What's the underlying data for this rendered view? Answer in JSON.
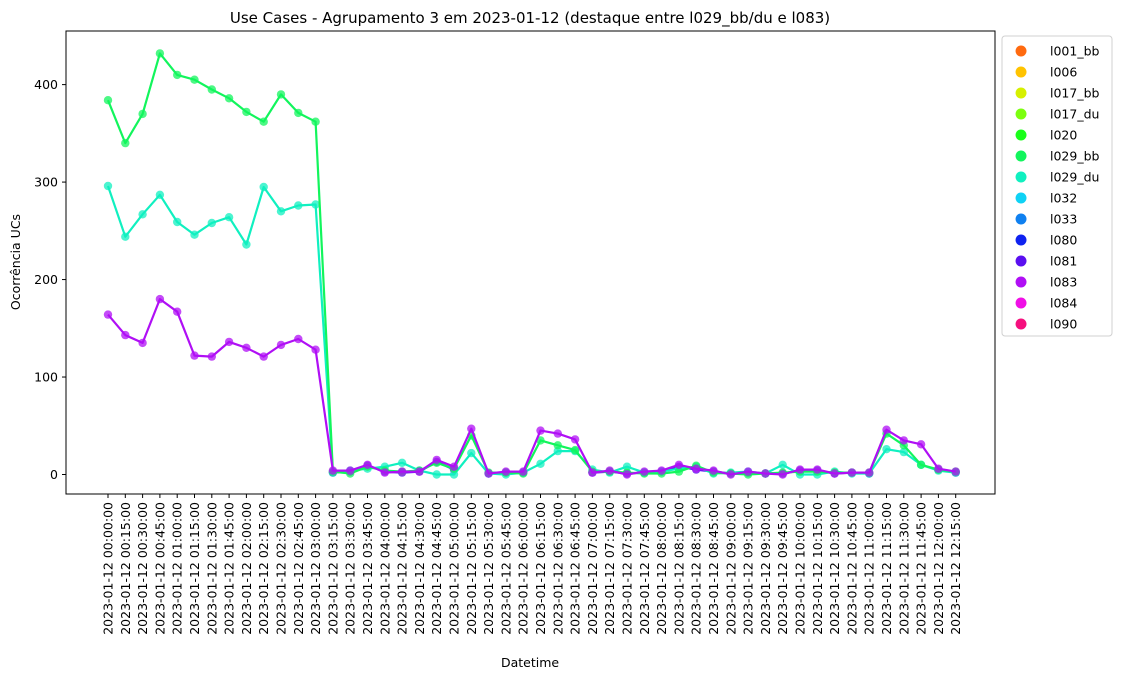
{
  "chart_data": {
    "type": "line",
    "title": "Use Cases - Agrupamento 3 em 2023-01-12 (destaque entre l029_bb/du e l083)",
    "xlabel": "Datetime",
    "ylabel": "Ocorrência UCs",
    "ylim": [
      -20,
      455
    ],
    "yticks": [
      0,
      100,
      200,
      300,
      400
    ],
    "grid": false,
    "legend_position": "outside-right",
    "categories": [
      "2023-01-12 00:00:00",
      "2023-01-12 00:15:00",
      "2023-01-12 00:30:00",
      "2023-01-12 00:45:00",
      "2023-01-12 01:00:00",
      "2023-01-12 01:15:00",
      "2023-01-12 01:30:00",
      "2023-01-12 01:45:00",
      "2023-01-12 02:00:00",
      "2023-01-12 02:15:00",
      "2023-01-12 02:30:00",
      "2023-01-12 02:45:00",
      "2023-01-12 03:00:00",
      "2023-01-12 03:15:00",
      "2023-01-12 03:30:00",
      "2023-01-12 03:45:00",
      "2023-01-12 04:00:00",
      "2023-01-12 04:15:00",
      "2023-01-12 04:30:00",
      "2023-01-12 04:45:00",
      "2023-01-12 05:00:00",
      "2023-01-12 05:15:00",
      "2023-01-12 05:30:00",
      "2023-01-12 05:45:00",
      "2023-01-12 06:00:00",
      "2023-01-12 06:15:00",
      "2023-01-12 06:30:00",
      "2023-01-12 06:45:00",
      "2023-01-12 07:00:00",
      "2023-01-12 07:15:00",
      "2023-01-12 07:30:00",
      "2023-01-12 07:45:00",
      "2023-01-12 08:00:00",
      "2023-01-12 08:15:00",
      "2023-01-12 08:30:00",
      "2023-01-12 08:45:00",
      "2023-01-12 09:00:00",
      "2023-01-12 09:15:00",
      "2023-01-12 09:30:00",
      "2023-01-12 09:45:00",
      "2023-01-12 10:00:00",
      "2023-01-12 10:15:00",
      "2023-01-12 10:30:00",
      "2023-01-12 10:45:00",
      "2023-01-12 11:00:00",
      "2023-01-12 11:15:00",
      "2023-01-12 11:30:00",
      "2023-01-12 11:45:00",
      "2023-01-12 12:00:00",
      "2023-01-12 12:15:00"
    ],
    "legend": [
      {
        "name": "l001_bb",
        "color": "#ff6a0f"
      },
      {
        "name": "l006",
        "color": "#ffc300"
      },
      {
        "name": "l017_bb",
        "color": "#d6f000"
      },
      {
        "name": "l017_du",
        "color": "#7cff0f"
      },
      {
        "name": "l020",
        "color": "#1aff1a"
      },
      {
        "name": "l029_bb",
        "color": "#12f55c"
      },
      {
        "name": "l029_du",
        "color": "#10f0c0"
      },
      {
        "name": "l032",
        "color": "#0fd2f5"
      },
      {
        "name": "l033",
        "color": "#0f80f0"
      },
      {
        "name": "l080",
        "color": "#0f22f0"
      },
      {
        "name": "l081",
        "color": "#5a0ff0"
      },
      {
        "name": "l083",
        "color": "#b00ff5"
      },
      {
        "name": "l084",
        "color": "#f00fe6"
      },
      {
        "name": "l090",
        "color": "#f5107e"
      }
    ],
    "series": [
      {
        "name": "l029_bb",
        "color": "#12f55c",
        "values": [
          384,
          340,
          370,
          432,
          410,
          405,
          395,
          386,
          372,
          362,
          390,
          371,
          362,
          3,
          1,
          8,
          4,
          3,
          4,
          12,
          6,
          40,
          2,
          2,
          1,
          35,
          30,
          25,
          3,
          3,
          2,
          1,
          1,
          3,
          9,
          2,
          1,
          0,
          1,
          2,
          3,
          3,
          2,
          2,
          2,
          42,
          30,
          10,
          5,
          3
        ]
      },
      {
        "name": "l029_du",
        "color": "#10f0c0",
        "values": [
          296,
          244,
          267,
          287,
          259,
          246,
          258,
          264,
          236,
          295,
          270,
          276,
          277,
          2,
          4,
          6,
          8,
          12,
          4,
          0,
          0,
          22,
          1,
          0,
          2,
          11,
          24,
          24,
          5,
          2,
          8,
          2,
          3,
          6,
          8,
          1,
          2,
          3,
          1,
          10,
          0,
          0,
          3,
          1,
          1,
          26,
          23,
          10,
          4,
          2
        ]
      },
      {
        "name": "l083",
        "color": "#b00ff5",
        "values": [
          164,
          143,
          135,
          180,
          167,
          122,
          121,
          136,
          130,
          121,
          133,
          139,
          128,
          4,
          4,
          10,
          2,
          3,
          3,
          15,
          8,
          47,
          1,
          3,
          3,
          45,
          42,
          36,
          2,
          4,
          0,
          3,
          4,
          10,
          6,
          4,
          0,
          3,
          1,
          0,
          5,
          5,
          1,
          2,
          2,
          46,
          35,
          31,
          6,
          3
        ]
      },
      {
        "name": "l081",
        "color": "#5a0ff0",
        "values": [
          null,
          null,
          null,
          null,
          null,
          null,
          null,
          null,
          null,
          null,
          null,
          null,
          null,
          2,
          3,
          9,
          3,
          2,
          3,
          13,
          5,
          null,
          1,
          2,
          2,
          null,
          null,
          null,
          2,
          3,
          1,
          2,
          3,
          8,
          5,
          3,
          1,
          2,
          1,
          1,
          4,
          4,
          1,
          2,
          1,
          null,
          null,
          null,
          5,
          2
        ]
      }
    ]
  }
}
